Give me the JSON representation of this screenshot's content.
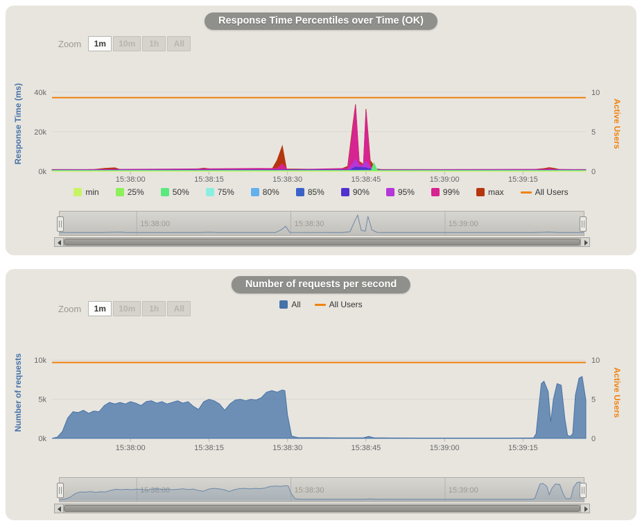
{
  "chart_data": [
    {
      "type": "area",
      "title": "Response Time Percentiles over Time (OK)",
      "zoom": {
        "label": "Zoom",
        "buttons": [
          {
            "label": "1m",
            "enabled": true,
            "selected": true
          },
          {
            "label": "10m",
            "enabled": false,
            "selected": false
          },
          {
            "label": "1h",
            "enabled": false,
            "selected": false
          },
          {
            "label": "All",
            "enabled": false,
            "selected": false
          }
        ]
      },
      "x_domain": [
        0,
        102
      ],
      "x_ticks": [
        {
          "t": 15,
          "label": "15:38:00"
        },
        {
          "t": 30,
          "label": "15:38:15"
        },
        {
          "t": 45,
          "label": "15:38:30"
        },
        {
          "t": 60,
          "label": "15:38:45"
        },
        {
          "t": 75,
          "label": "15:39:00"
        },
        {
          "t": 90,
          "label": "15:39:15"
        }
      ],
      "y_left": {
        "title": "Response Time (ms)",
        "color": "#4572a7",
        "max": 48000,
        "ticks": [
          {
            "v": 0,
            "label": "0k"
          },
          {
            "v": 20000,
            "label": "20k"
          },
          {
            "v": 40000,
            "label": "40k"
          }
        ]
      },
      "y_right": {
        "title": "Active Users",
        "color": "#f0820f",
        "max": 12,
        "ticks": [
          {
            "v": 0,
            "label": "0"
          },
          {
            "v": 5,
            "label": "5"
          },
          {
            "v": 10,
            "label": "10"
          }
        ]
      },
      "users_line": {
        "name": "All Users",
        "color": "#f0820f",
        "value": 9.3
      },
      "series": [
        {
          "name": "max",
          "color": "#b5360e",
          "fill_opacity": 1,
          "points": [
            [
              0,
              900
            ],
            [
              8,
              900
            ],
            [
              10,
              1500
            ],
            [
              12,
              1800
            ],
            [
              13,
              900
            ],
            [
              27,
              900
            ],
            [
              29,
              1600
            ],
            [
              31,
              900
            ],
            [
              42,
              900
            ],
            [
              43,
              5500
            ],
            [
              44,
              12800
            ],
            [
              44.8,
              1200
            ],
            [
              55,
              900
            ],
            [
              56.5,
              2500
            ],
            [
              57.5,
              24000
            ],
            [
              58,
              33800
            ],
            [
              58.7,
              5000
            ],
            [
              59.5,
              3500
            ],
            [
              60,
              31500
            ],
            [
              60.8,
              5500
            ],
            [
              61.2,
              4000
            ],
            [
              61.8,
              1200
            ],
            [
              63,
              900
            ],
            [
              92,
              900
            ],
            [
              94,
              1400
            ],
            [
              95,
              1900
            ],
            [
              96,
              1500
            ],
            [
              97,
              900
            ],
            [
              102,
              900
            ]
          ]
        },
        {
          "name": "99%",
          "color": "#d62490",
          "fill_opacity": 1,
          "points": [
            [
              0,
              800
            ],
            [
              43,
              1500
            ],
            [
              44,
              3800
            ],
            [
              45,
              850
            ],
            [
              56.5,
              1500
            ],
            [
              57.5,
              22000
            ],
            [
              58,
              33200
            ],
            [
              58.7,
              4000
            ],
            [
              59.5,
              3000
            ],
            [
              60,
              30800
            ],
            [
              60.8,
              3000
            ],
            [
              61.5,
              800
            ],
            [
              94,
              1000
            ],
            [
              95,
              1300
            ],
            [
              96,
              1000
            ],
            [
              102,
              800
            ]
          ]
        },
        {
          "name": "95%",
          "color": "#b437d8",
          "fill_opacity": 1,
          "points": [
            [
              0,
              700
            ],
            [
              56.5,
              700
            ],
            [
              57.5,
              4000
            ],
            [
              58,
              6000
            ],
            [
              59,
              2000
            ],
            [
              60,
              5000
            ],
            [
              61,
              1500
            ],
            [
              62,
              700
            ],
            [
              102,
              700
            ]
          ]
        },
        {
          "name": "90%",
          "color": "#5232cc",
          "fill_opacity": 1,
          "points": [
            [
              0,
              600
            ],
            [
              57,
              800
            ],
            [
              58,
              2200
            ],
            [
              60,
              1800
            ],
            [
              61.5,
              600
            ],
            [
              102,
              600
            ]
          ]
        },
        {
          "name": "85%",
          "color": "#3b62c8",
          "fill_opacity": 1,
          "points": [
            [
              0,
              500
            ],
            [
              102,
              500
            ]
          ]
        },
        {
          "name": "80%",
          "color": "#64b0ee",
          "fill_opacity": 1,
          "points": [
            [
              0,
              450
            ],
            [
              102,
              450
            ]
          ]
        },
        {
          "name": "75%",
          "color": "#8ceee0",
          "fill_opacity": 1,
          "points": [
            [
              0,
              400
            ],
            [
              102,
              400
            ]
          ]
        },
        {
          "name": "50%",
          "color": "#5ce87e",
          "fill_opacity": 1,
          "points": [
            [
              0,
              300
            ],
            [
              61,
              300
            ],
            [
              61.5,
              4300
            ],
            [
              62.2,
              300
            ],
            [
              102,
              300
            ]
          ]
        },
        {
          "name": "25%",
          "color": "#8cf05a",
          "fill_opacity": 1,
          "points": [
            [
              0,
              200
            ],
            [
              102,
              200
            ]
          ]
        },
        {
          "name": "min",
          "color": "#c8f464",
          "fill_opacity": 1,
          "points": [
            [
              0,
              120
            ],
            [
              102,
              120
            ]
          ]
        }
      ],
      "legend": [
        {
          "label": "min",
          "color": "#c8f464",
          "type": "box"
        },
        {
          "label": "25%",
          "color": "#8cf05a",
          "type": "box"
        },
        {
          "label": "50%",
          "color": "#5ce87e",
          "type": "box"
        },
        {
          "label": "75%",
          "color": "#8ceee0",
          "type": "box"
        },
        {
          "label": "80%",
          "color": "#64b0ee",
          "type": "box"
        },
        {
          "label": "85%",
          "color": "#3b62c8",
          "type": "box"
        },
        {
          "label": "90%",
          "color": "#5232cc",
          "type": "box"
        },
        {
          "label": "95%",
          "color": "#b437d8",
          "type": "box"
        },
        {
          "label": "99%",
          "color": "#d62490",
          "type": "box"
        },
        {
          "label": "max",
          "color": "#b5360e",
          "type": "box"
        },
        {
          "label": "All Users",
          "color": "#f0820f",
          "type": "line"
        }
      ],
      "navigator": {
        "preview_series_index": 0,
        "preview_max": 34000,
        "fill": false,
        "labels": [
          {
            "t": 15,
            "label": "15:38:00"
          },
          {
            "t": 45,
            "label": "15:38:30"
          },
          {
            "t": 75,
            "label": "15:39:00"
          }
        ]
      }
    },
    {
      "type": "area",
      "title": "Number of requests per second",
      "zoom": {
        "label": "Zoom",
        "buttons": [
          {
            "label": "1m",
            "enabled": true,
            "selected": true
          },
          {
            "label": "10m",
            "enabled": false,
            "selected": false
          },
          {
            "label": "1h",
            "enabled": false,
            "selected": false
          },
          {
            "label": "All",
            "enabled": false,
            "selected": false
          }
        ]
      },
      "x_domain": [
        0,
        102
      ],
      "x_ticks": [
        {
          "t": 15,
          "label": "15:38:00"
        },
        {
          "t": 30,
          "label": "15:38:15"
        },
        {
          "t": 45,
          "label": "15:38:30"
        },
        {
          "t": 60,
          "label": "15:38:45"
        },
        {
          "t": 75,
          "label": "15:39:00"
        },
        {
          "t": 90,
          "label": "15:39:15"
        }
      ],
      "y_left": {
        "title": "Number of requests",
        "color": "#4572a7",
        "max": 11700,
        "ticks": [
          {
            "v": 0,
            "label": "0k"
          },
          {
            "v": 5000,
            "label": "5k"
          },
          {
            "v": 10000,
            "label": "10k"
          }
        ]
      },
      "y_right": {
        "title": "Active Users",
        "color": "#f0820f",
        "max": 11.7,
        "ticks": [
          {
            "v": 0,
            "label": "0"
          },
          {
            "v": 5,
            "label": "5"
          },
          {
            "v": 10,
            "label": "10"
          }
        ]
      },
      "users_line": {
        "name": "All Users",
        "color": "#f0820f",
        "value": 9.7
      },
      "series": [
        {
          "name": "All",
          "color": "#4572a7",
          "fill_opacity": 0.75,
          "points": [
            [
              0,
              0
            ],
            [
              1,
              150
            ],
            [
              2,
              900
            ],
            [
              3,
              2600
            ],
            [
              4,
              3400
            ],
            [
              5,
              3300
            ],
            [
              6,
              3600
            ],
            [
              7,
              3200
            ],
            [
              8,
              3500
            ],
            [
              9,
              3400
            ],
            [
              10,
              4200
            ],
            [
              11,
              4600
            ],
            [
              12,
              4400
            ],
            [
              13,
              4600
            ],
            [
              14,
              4400
            ],
            [
              15,
              4700
            ],
            [
              16,
              4500
            ],
            [
              17,
              4200
            ],
            [
              18,
              4700
            ],
            [
              19,
              4800
            ],
            [
              20,
              4500
            ],
            [
              21,
              4700
            ],
            [
              22,
              4400
            ],
            [
              23,
              4600
            ],
            [
              24,
              4800
            ],
            [
              25,
              4500
            ],
            [
              26,
              4700
            ],
            [
              27,
              4100
            ],
            [
              28,
              3700
            ],
            [
              29,
              4700
            ],
            [
              30,
              5000
            ],
            [
              31,
              4800
            ],
            [
              32,
              4400
            ],
            [
              33,
              3600
            ],
            [
              34,
              4400
            ],
            [
              35,
              4900
            ],
            [
              36,
              5000
            ],
            [
              37,
              4800
            ],
            [
              38,
              5000
            ],
            [
              39,
              4900
            ],
            [
              40,
              5200
            ],
            [
              41,
              5900
            ],
            [
              42,
              6100
            ],
            [
              43,
              5900
            ],
            [
              44,
              6200
            ],
            [
              44.5,
              6100
            ],
            [
              45,
              3000
            ],
            [
              45.8,
              300
            ],
            [
              47,
              100
            ],
            [
              55,
              60
            ],
            [
              59.5,
              80
            ],
            [
              60.5,
              250
            ],
            [
              61.5,
              80
            ],
            [
              65,
              50
            ],
            [
              70,
              40
            ],
            [
              75,
              40
            ],
            [
              80,
              40
            ],
            [
              85,
              40
            ],
            [
              88,
              40
            ],
            [
              92,
              50
            ],
            [
              92.5,
              600
            ],
            [
              93,
              4000
            ],
            [
              93.5,
              7000
            ],
            [
              94,
              7300
            ],
            [
              94.8,
              6000
            ],
            [
              95.3,
              2100
            ],
            [
              95.8,
              5000
            ],
            [
              96.5,
              7000
            ],
            [
              97.3,
              6800
            ],
            [
              98,
              2500
            ],
            [
              98.5,
              400
            ],
            [
              99,
              250
            ],
            [
              99.5,
              600
            ],
            [
              100,
              5500
            ],
            [
              100.7,
              7700
            ],
            [
              101.3,
              7900
            ],
            [
              102,
              4900
            ]
          ]
        }
      ],
      "legend": [
        {
          "label": "All",
          "color": "#4572a7",
          "type": "box"
        },
        {
          "label": "All Users",
          "color": "#f0820f",
          "type": "line"
        }
      ],
      "navigator": {
        "preview_series_index": 0,
        "preview_max": 8200,
        "fill": true,
        "labels": [
          {
            "t": 15,
            "label": "15:38:00"
          },
          {
            "t": 45,
            "label": "15:38:30"
          },
          {
            "t": 75,
            "label": "15:39:00"
          }
        ]
      }
    }
  ]
}
